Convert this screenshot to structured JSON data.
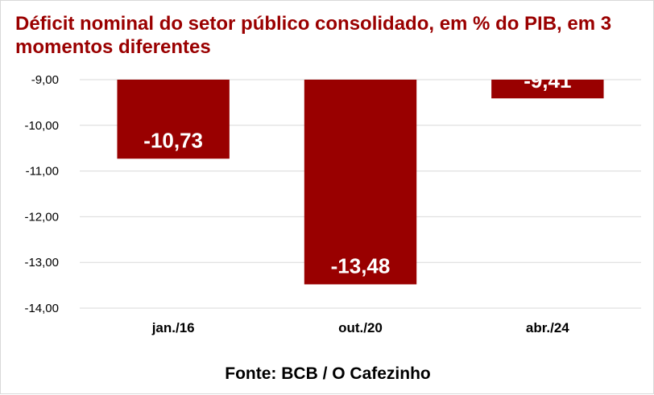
{
  "chart_data": {
    "type": "bar",
    "title": "Déficit nominal do setor público consolidado, em % do PIB, em 3 momentos diferentes",
    "categories": [
      "jan./16",
      "out./20",
      "abr./24"
    ],
    "values": [
      -10.73,
      -13.48,
      -9.41
    ],
    "data_labels": [
      "-10,73",
      "-13,48",
      "-9,41"
    ],
    "y_ticks": [
      "-9,00",
      "-10,00",
      "-11,00",
      "-12,00",
      "-13,00",
      "-14,00"
    ],
    "y_tick_values": [
      -9,
      -10,
      -11,
      -12,
      -13,
      -14
    ],
    "ylim": [
      -14,
      -9
    ],
    "y_reversed": true,
    "grid": true,
    "bar_color": "#990000",
    "source": "Fonte: BCB / O Cafezinho"
  }
}
